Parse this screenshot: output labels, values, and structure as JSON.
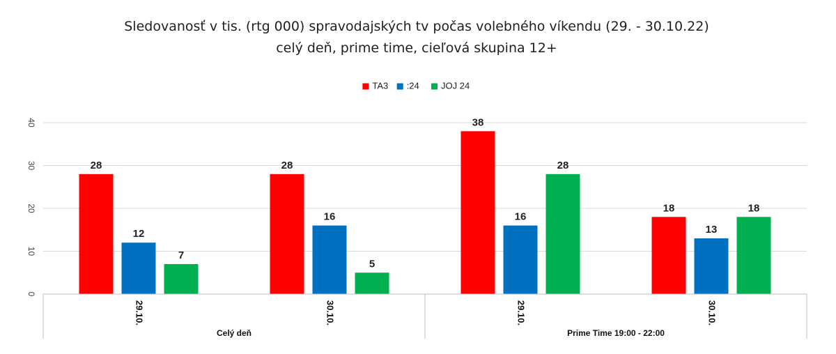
{
  "chart_data": {
    "type": "bar",
    "title": "Sledovanosť v tis. (rtg 000) spravodajských tv počas volebného víkendu (29. - 30.10.22)",
    "subtitle": "celý deň, prime time, cieľová skupina 12+",
    "xlabel": "",
    "ylabel": "",
    "ylim": [
      0,
      40
    ],
    "yticks": [
      0,
      10,
      20,
      30,
      40
    ],
    "grid": true,
    "legend": "top-center",
    "groups": [
      {
        "label": "Celý deň",
        "categories": [
          "29.10.",
          "30.10."
        ]
      },
      {
        "label": "Prime Time 19:00 - 22:00",
        "categories": [
          "29.10.",
          "30.10."
        ]
      }
    ],
    "categories": [
      "29.10.",
      "30.10.",
      "29.10.",
      "30.10."
    ],
    "series": [
      {
        "name": "TA3",
        "color": "#ff0000",
        "values": [
          28,
          28,
          38,
          18
        ]
      },
      {
        "name": ":24",
        "color": "#0070c0",
        "values": [
          12,
          16,
          16,
          13
        ]
      },
      {
        "name": "JOJ 24",
        "color": "#00b050",
        "values": [
          7,
          5,
          28,
          18
        ]
      }
    ]
  }
}
